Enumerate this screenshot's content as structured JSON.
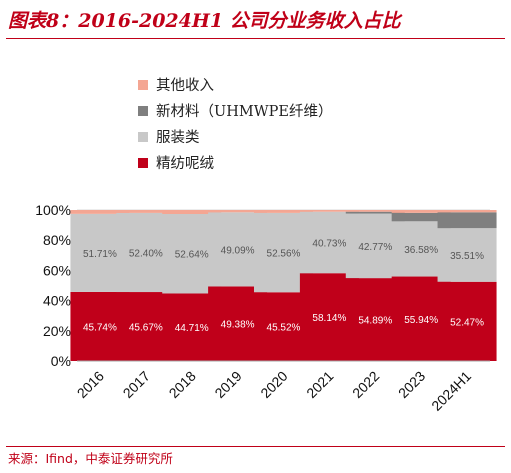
{
  "title": "图表8：2016-2024H1 公司分业务收入占比",
  "source": "来源：Ifind，中泰证券研究所",
  "chart_data": {
    "type": "bar",
    "stacked": true,
    "categories": [
      "2016",
      "2017",
      "2018",
      "2019",
      "2020",
      "2021",
      "2022",
      "2023",
      "2024H1"
    ],
    "ylim": [
      0,
      100
    ],
    "yticks": [
      "0%",
      "20%",
      "40%",
      "60%",
      "80%",
      "100%"
    ],
    "legend_position": "top-left",
    "series": [
      {
        "name": "精纺呢绒",
        "color": "#c0001a",
        "label_color": "#ffffff",
        "values": [
          45.74,
          45.67,
          44.71,
          49.38,
          45.52,
          58.14,
          54.89,
          55.94,
          52.47
        ],
        "labels": [
          "45.74%",
          "45.67%",
          "44.71%",
          "49.38%",
          "45.52%",
          "58.14%",
          "54.89%",
          "55.94%",
          "52.47%"
        ]
      },
      {
        "name": "服装类",
        "color": "#c8c8c8",
        "label_color": "#555555",
        "values": [
          51.71,
          52.4,
          52.64,
          49.09,
          52.56,
          40.73,
          42.77,
          36.58,
          35.51
        ],
        "labels": [
          "51.71%",
          "52.40%",
          "52.64%",
          "49.09%",
          "52.56%",
          "40.73%",
          "42.77%",
          "36.58%",
          "35.51%"
        ]
      },
      {
        "name": "新材料（UHMWPE纤维）",
        "color": "#7f7f7f",
        "values": [
          0,
          0,
          0,
          0,
          0,
          0,
          1.2,
          5.6,
          10.5
        ]
      },
      {
        "name": "其他收入",
        "color": "#f4a693",
        "values": [
          2.55,
          1.93,
          2.65,
          1.53,
          1.92,
          1.13,
          1.14,
          1.88,
          1.52
        ]
      }
    ]
  }
}
